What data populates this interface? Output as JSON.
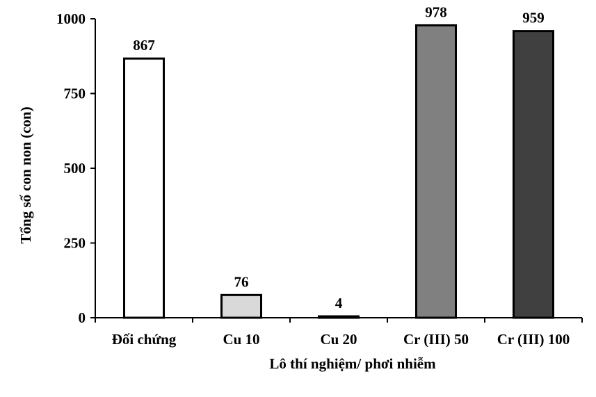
{
  "chart_data": {
    "type": "bar",
    "categories": [
      "Đối chứng",
      "Cu 10",
      "Cu 20",
      "Cr (III) 50",
      "Cr (III) 100"
    ],
    "values": [
      867,
      76,
      4,
      978,
      959
    ],
    "data_labels": [
      "867",
      "76",
      "4",
      "978",
      "959"
    ],
    "bar_colors": [
      "#ffffff",
      "#d9d9d9",
      "#ffffff",
      "#808080",
      "#404040"
    ],
    "edge_color": "#000000",
    "title": "",
    "xlabel": "Lô thí nghiệm/ phơi nhiễm",
    "ylabel": "Tổng số con non (con)",
    "ylim": [
      0,
      1000
    ],
    "yticks": [
      0,
      250,
      500,
      750,
      1000
    ],
    "ytick_labels": [
      "0",
      "250",
      "500",
      "750",
      "1000"
    ],
    "grid": false,
    "legend": "none"
  }
}
